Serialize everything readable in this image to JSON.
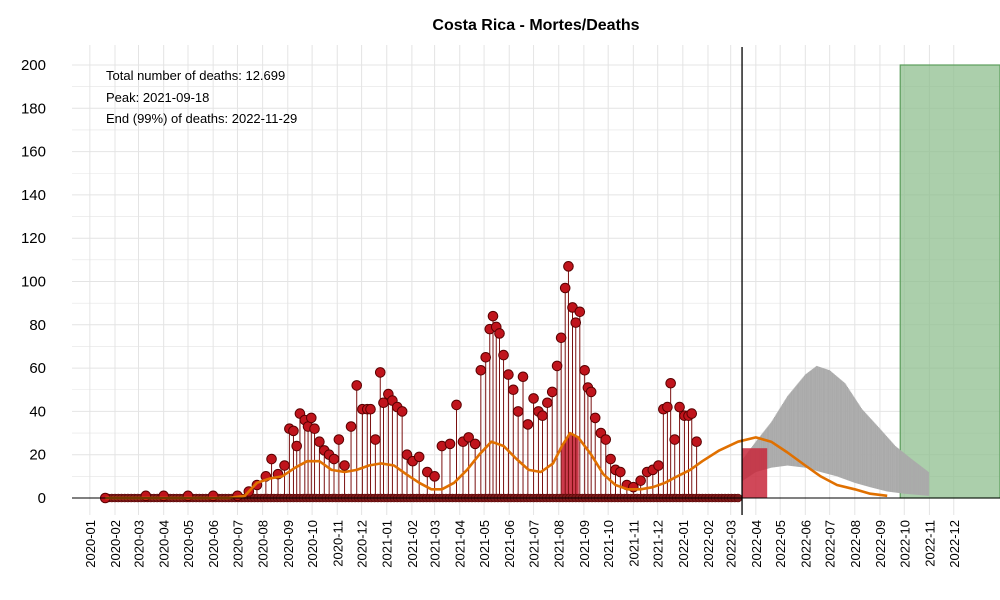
{
  "chart_data": {
    "type": "bar",
    "title": "Costa Rica - Mortes/Deaths",
    "xlabel": "",
    "ylabel": "",
    "ylim": [
      0,
      200
    ],
    "yticks": [
      0,
      20,
      40,
      60,
      80,
      100,
      120,
      140,
      160,
      180,
      200
    ],
    "xlim": [
      "2019-12-10",
      "2023-01-27"
    ],
    "xticks": [
      "2020-01",
      "2020-02",
      "2020-03",
      "2020-04",
      "2020-05",
      "2020-06",
      "2020-07",
      "2020-08",
      "2020-09",
      "2020-10",
      "2020-11",
      "2020-12",
      "2021-01",
      "2021-02",
      "2021-03",
      "2021-04",
      "2021-05",
      "2021-06",
      "2021-07",
      "2021-08",
      "2021-09",
      "2021-10",
      "2021-11",
      "2021-12",
      "2022-01",
      "2022-02",
      "2022-03",
      "2022-04",
      "2022-05",
      "2022-06",
      "2022-07",
      "2022-08",
      "2022-09",
      "2022-10",
      "2022-11",
      "2022-12"
    ],
    "grid": true,
    "annotations": {
      "total": "Total number of deaths: 12.699",
      "peak": "Peak: 2021-09-18",
      "end": "End (99%) of deaths: 2022-11-29"
    },
    "cutoff_date": "2022-03-15",
    "observed_daily": [
      {
        "date": "2020-01-20",
        "value": 0
      },
      {
        "date": "2020-03-10",
        "value": 1
      },
      {
        "date": "2020-04-01",
        "value": 1
      },
      {
        "date": "2020-05-01",
        "value": 1
      },
      {
        "date": "2020-06-01",
        "value": 1
      },
      {
        "date": "2020-07-01",
        "value": 1
      },
      {
        "date": "2020-07-15",
        "value": 3
      },
      {
        "date": "2020-07-25",
        "value": 6
      },
      {
        "date": "2020-08-05",
        "value": 10
      },
      {
        "date": "2020-08-12",
        "value": 18
      },
      {
        "date": "2020-08-20",
        "value": 11
      },
      {
        "date": "2020-08-28",
        "value": 15
      },
      {
        "date": "2020-09-03",
        "value": 32
      },
      {
        "date": "2020-09-08",
        "value": 31
      },
      {
        "date": "2020-09-12",
        "value": 24
      },
      {
        "date": "2020-09-16",
        "value": 39
      },
      {
        "date": "2020-09-22",
        "value": 36
      },
      {
        "date": "2020-09-26",
        "value": 33
      },
      {
        "date": "2020-09-30",
        "value": 37
      },
      {
        "date": "2020-10-04",
        "value": 32
      },
      {
        "date": "2020-10-10",
        "value": 26
      },
      {
        "date": "2020-10-16",
        "value": 22
      },
      {
        "date": "2020-10-22",
        "value": 20
      },
      {
        "date": "2020-10-28",
        "value": 18
      },
      {
        "date": "2020-11-03",
        "value": 27
      },
      {
        "date": "2020-11-10",
        "value": 15
      },
      {
        "date": "2020-11-18",
        "value": 33
      },
      {
        "date": "2020-11-25",
        "value": 52
      },
      {
        "date": "2020-12-02",
        "value": 41
      },
      {
        "date": "2020-12-08",
        "value": 41
      },
      {
        "date": "2020-12-12",
        "value": 41
      },
      {
        "date": "2020-12-18",
        "value": 27
      },
      {
        "date": "2020-12-24",
        "value": 58
      },
      {
        "date": "2020-12-28",
        "value": 44
      },
      {
        "date": "2021-01-03",
        "value": 48
      },
      {
        "date": "2021-01-08",
        "value": 45
      },
      {
        "date": "2021-01-14",
        "value": 42
      },
      {
        "date": "2021-01-20",
        "value": 40
      },
      {
        "date": "2021-01-26",
        "value": 20
      },
      {
        "date": "2021-02-02",
        "value": 17
      },
      {
        "date": "2021-02-10",
        "value": 19
      },
      {
        "date": "2021-02-20",
        "value": 12
      },
      {
        "date": "2021-03-01",
        "value": 10
      },
      {
        "date": "2021-03-10",
        "value": 24
      },
      {
        "date": "2021-03-20",
        "value": 25
      },
      {
        "date": "2021-03-28",
        "value": 43
      },
      {
        "date": "2021-04-05",
        "value": 26
      },
      {
        "date": "2021-04-12",
        "value": 28
      },
      {
        "date": "2021-04-20",
        "value": 25
      },
      {
        "date": "2021-04-27",
        "value": 59
      },
      {
        "date": "2021-05-03",
        "value": 65
      },
      {
        "date": "2021-05-08",
        "value": 78
      },
      {
        "date": "2021-05-12",
        "value": 84
      },
      {
        "date": "2021-05-16",
        "value": 79
      },
      {
        "date": "2021-05-20",
        "value": 76
      },
      {
        "date": "2021-05-25",
        "value": 66
      },
      {
        "date": "2021-05-31",
        "value": 57
      },
      {
        "date": "2021-06-06",
        "value": 50
      },
      {
        "date": "2021-06-12",
        "value": 40
      },
      {
        "date": "2021-06-18",
        "value": 56
      },
      {
        "date": "2021-06-24",
        "value": 34
      },
      {
        "date": "2021-07-01",
        "value": 46
      },
      {
        "date": "2021-07-07",
        "value": 40
      },
      {
        "date": "2021-07-12",
        "value": 38
      },
      {
        "date": "2021-07-18",
        "value": 44
      },
      {
        "date": "2021-07-24",
        "value": 49
      },
      {
        "date": "2021-07-30",
        "value": 61
      },
      {
        "date": "2021-08-04",
        "value": 74
      },
      {
        "date": "2021-08-09",
        "value": 97
      },
      {
        "date": "2021-08-13",
        "value": 107
      },
      {
        "date": "2021-08-18",
        "value": 88
      },
      {
        "date": "2021-08-22",
        "value": 81
      },
      {
        "date": "2021-08-27",
        "value": 86
      },
      {
        "date": "2021-09-02",
        "value": 59
      },
      {
        "date": "2021-09-06",
        "value": 51
      },
      {
        "date": "2021-09-10",
        "value": 49
      },
      {
        "date": "2021-09-15",
        "value": 37
      },
      {
        "date": "2021-09-22",
        "value": 30
      },
      {
        "date": "2021-09-28",
        "value": 27
      },
      {
        "date": "2021-10-04",
        "value": 18
      },
      {
        "date": "2021-10-10",
        "value": 13
      },
      {
        "date": "2021-10-16",
        "value": 12
      },
      {
        "date": "2021-10-24",
        "value": 6
      },
      {
        "date": "2021-11-01",
        "value": 5
      },
      {
        "date": "2021-11-10",
        "value": 8
      },
      {
        "date": "2021-11-18",
        "value": 12
      },
      {
        "date": "2021-11-25",
        "value": 13
      },
      {
        "date": "2021-12-02",
        "value": 15
      },
      {
        "date": "2021-12-08",
        "value": 41
      },
      {
        "date": "2021-12-13",
        "value": 42
      },
      {
        "date": "2021-12-17",
        "value": 53
      },
      {
        "date": "2021-12-22",
        "value": 27
      },
      {
        "date": "2021-12-28",
        "value": 42
      },
      {
        "date": "2022-01-03",
        "value": 38
      },
      {
        "date": "2022-01-08",
        "value": 38
      },
      {
        "date": "2022-01-12",
        "value": 39
      },
      {
        "date": "2022-01-18",
        "value": 26
      }
    ],
    "fitted_curve": [
      {
        "date": "2020-01-20",
        "value": 0
      },
      {
        "date": "2020-06-20",
        "value": 0
      },
      {
        "date": "2020-07-10",
        "value": 1
      },
      {
        "date": "2020-07-25",
        "value": 7
      },
      {
        "date": "2020-08-10",
        "value": 9
      },
      {
        "date": "2020-08-25",
        "value": 10
      },
      {
        "date": "2020-09-10",
        "value": 14
      },
      {
        "date": "2020-09-25",
        "value": 17
      },
      {
        "date": "2020-10-10",
        "value": 17
      },
      {
        "date": "2020-10-25",
        "value": 13
      },
      {
        "date": "2020-11-10",
        "value": 12
      },
      {
        "date": "2020-11-25",
        "value": 13
      },
      {
        "date": "2020-12-10",
        "value": 15
      },
      {
        "date": "2020-12-25",
        "value": 16
      },
      {
        "date": "2021-01-10",
        "value": 15
      },
      {
        "date": "2021-01-25",
        "value": 11
      },
      {
        "date": "2021-02-10",
        "value": 7
      },
      {
        "date": "2021-02-25",
        "value": 4
      },
      {
        "date": "2021-03-10",
        "value": 4
      },
      {
        "date": "2021-03-25",
        "value": 7
      },
      {
        "date": "2021-04-10",
        "value": 13
      },
      {
        "date": "2021-04-25",
        "value": 20
      },
      {
        "date": "2021-05-10",
        "value": 26
      },
      {
        "date": "2021-05-25",
        "value": 24
      },
      {
        "date": "2021-06-10",
        "value": 18
      },
      {
        "date": "2021-06-25",
        "value": 13
      },
      {
        "date": "2021-07-10",
        "value": 12
      },
      {
        "date": "2021-07-25",
        "value": 16
      },
      {
        "date": "2021-08-05",
        "value": 24
      },
      {
        "date": "2021-08-15",
        "value": 30
      },
      {
        "date": "2021-08-25",
        "value": 28
      },
      {
        "date": "2021-09-10",
        "value": 20
      },
      {
        "date": "2021-09-25",
        "value": 11
      },
      {
        "date": "2021-10-10",
        "value": 6
      },
      {
        "date": "2021-10-25",
        "value": 4
      },
      {
        "date": "2021-11-10",
        "value": 4
      },
      {
        "date": "2021-11-25",
        "value": 5
      },
      {
        "date": "2021-12-10",
        "value": 7
      },
      {
        "date": "2021-12-25",
        "value": 10
      },
      {
        "date": "2022-01-10",
        "value": 13
      },
      {
        "date": "2022-01-25",
        "value": 17
      },
      {
        "date": "2022-02-15",
        "value": 22
      },
      {
        "date": "2022-03-10",
        "value": 26
      },
      {
        "date": "2022-04-01",
        "value": 28
      },
      {
        "date": "2022-04-20",
        "value": 26
      },
      {
        "date": "2022-05-10",
        "value": 21
      },
      {
        "date": "2022-06-01",
        "value": 15
      },
      {
        "date": "2022-06-20",
        "value": 10
      },
      {
        "date": "2022-07-10",
        "value": 6
      },
      {
        "date": "2022-08-01",
        "value": 4
      },
      {
        "date": "2022-08-20",
        "value": 2
      },
      {
        "date": "2022-09-10",
        "value": 1
      }
    ],
    "projection_upper": [
      {
        "date": "2022-03-16",
        "value": 18
      },
      {
        "date": "2022-04-01",
        "value": 26
      },
      {
        "date": "2022-04-20",
        "value": 35
      },
      {
        "date": "2022-05-10",
        "value": 47
      },
      {
        "date": "2022-06-01",
        "value": 57
      },
      {
        "date": "2022-06-15",
        "value": 61
      },
      {
        "date": "2022-07-01",
        "value": 59
      },
      {
        "date": "2022-07-20",
        "value": 53
      },
      {
        "date": "2022-08-10",
        "value": 41
      },
      {
        "date": "2022-09-01",
        "value": 32
      },
      {
        "date": "2022-09-20",
        "value": 24
      },
      {
        "date": "2022-10-10",
        "value": 18
      },
      {
        "date": "2022-10-31",
        "value": 12
      }
    ],
    "projection_lower": [
      {
        "date": "2022-03-16",
        "value": 8
      },
      {
        "date": "2022-04-01",
        "value": 12
      },
      {
        "date": "2022-04-20",
        "value": 14
      },
      {
        "date": "2022-05-10",
        "value": 15
      },
      {
        "date": "2022-06-01",
        "value": 14
      },
      {
        "date": "2022-06-20",
        "value": 12
      },
      {
        "date": "2022-07-10",
        "value": 10
      },
      {
        "date": "2022-08-01",
        "value": 7
      },
      {
        "date": "2022-08-20",
        "value": 5
      },
      {
        "date": "2022-09-10",
        "value": 3
      },
      {
        "date": "2022-10-01",
        "value": 2
      },
      {
        "date": "2022-10-31",
        "value": 1
      }
    ],
    "peak_window": {
      "start": "2021-08-05",
      "end": "2021-08-25"
    },
    "red_window": {
      "start": "2022-03-15",
      "end": "2022-04-15",
      "value": 23
    },
    "end_window": {
      "start": "2022-09-26",
      "end": "2023-01-27",
      "value": 200
    },
    "colors": {
      "points": "#c0141c",
      "points_stroke": "#5a0000",
      "stems": "#7a1010",
      "zero_points": "#7a1a1a",
      "curve": "#e07000",
      "projection": "#aaaaaa",
      "peak_fill": "#c8283c",
      "end_fill": "#8fbf8f",
      "end_stroke": "#5c9e5c",
      "total_text": "#000000",
      "peak_text": "#b0101c",
      "end_text": "#5ea35e",
      "grid": "#e4e4e4"
    }
  }
}
